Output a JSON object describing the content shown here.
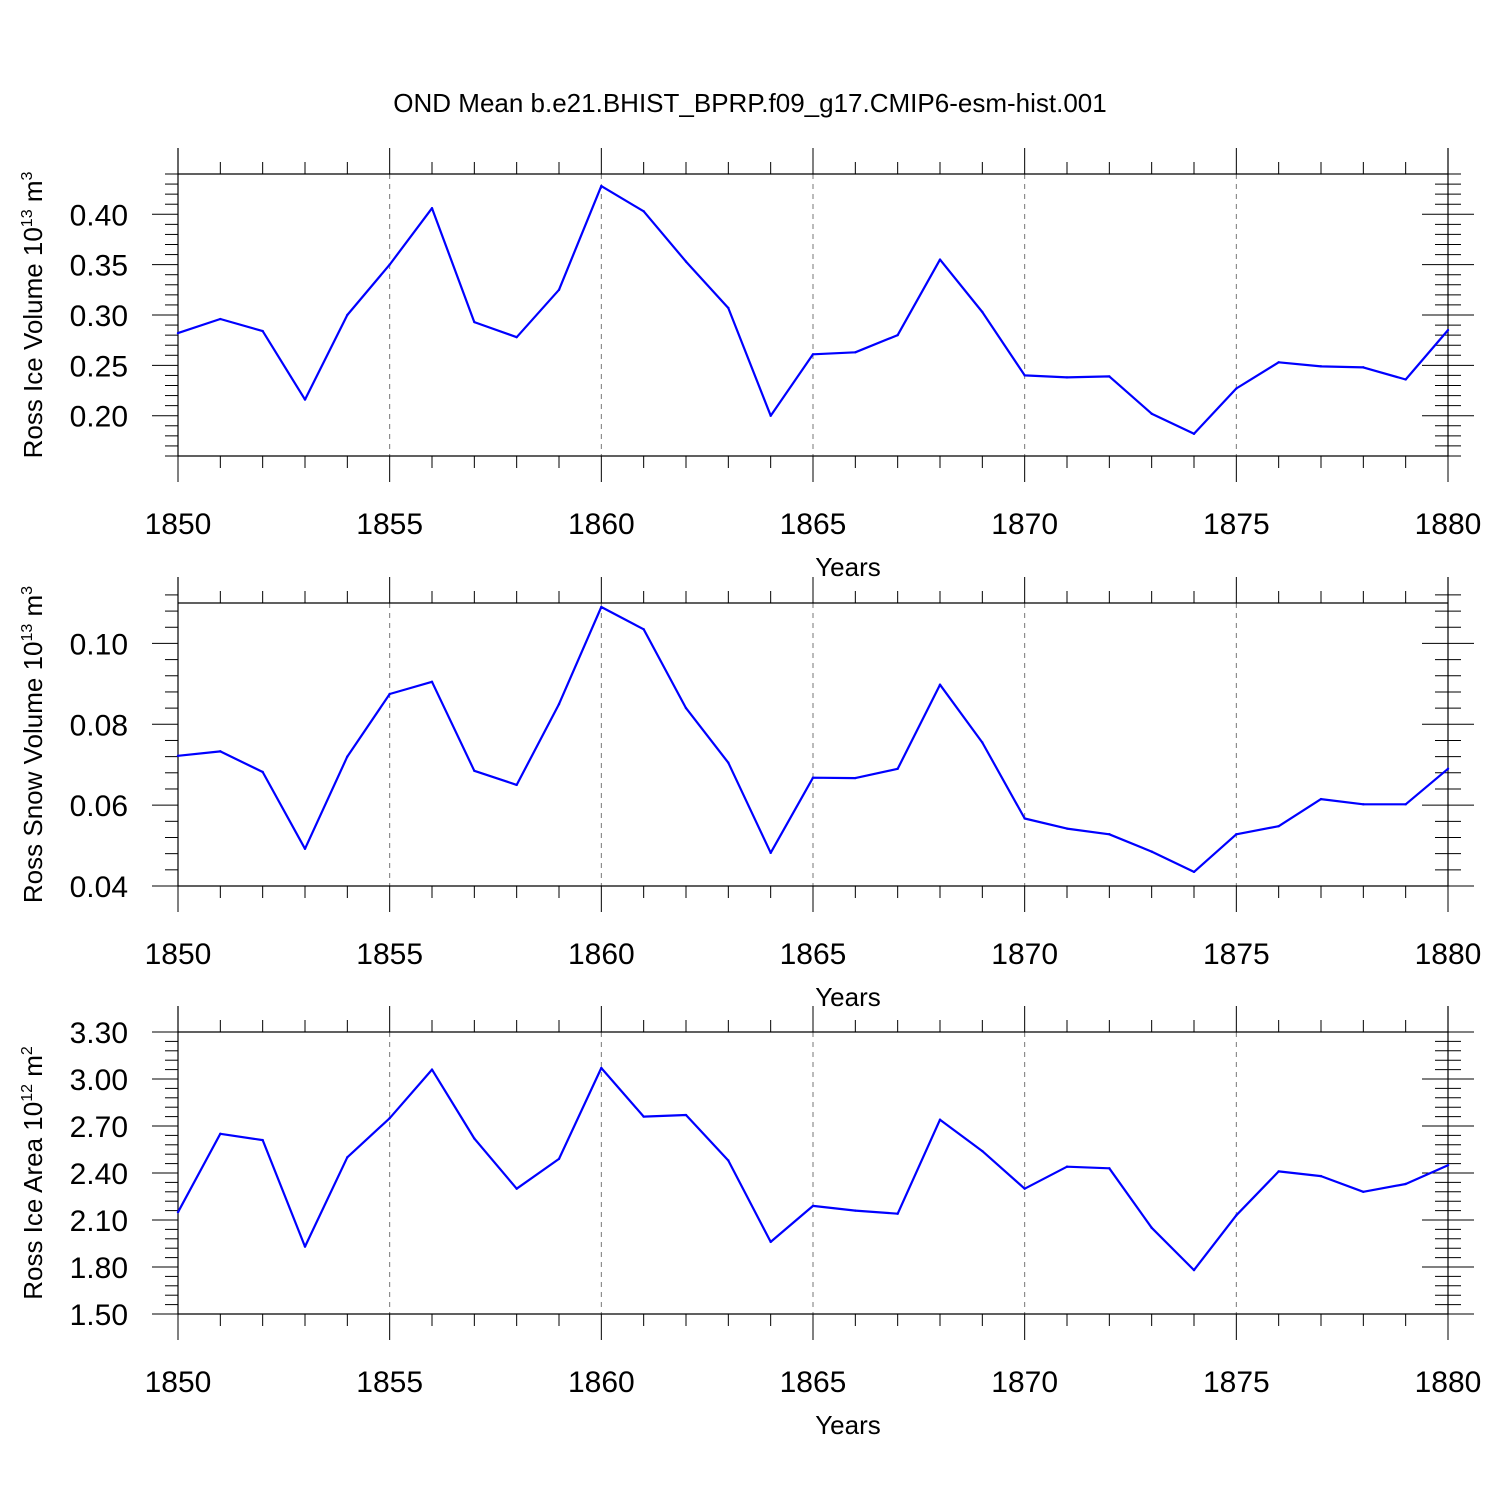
{
  "title": "OND Mean b.e21.BHIST_BPRP.f09_g17.CMIP6-esm-hist.001",
  "colors": {
    "series": "#0000ff",
    "axis": "#000000",
    "grid": "#777777"
  },
  "chart_data": [
    {
      "type": "line",
      "title": "OND Mean b.e21.BHIST_BPRP.f09_g17.CMIP6-esm-hist.001",
      "xlabel": "Years",
      "ylabel": {
        "text": "Ross Ice Volume 10",
        "sup": "13",
        "unit": "m",
        "unitSup": "3"
      },
      "x": [
        1850,
        1851,
        1852,
        1853,
        1854,
        1855,
        1856,
        1857,
        1858,
        1859,
        1860,
        1861,
        1862,
        1863,
        1864,
        1865,
        1866,
        1867,
        1868,
        1869,
        1870,
        1871,
        1872,
        1873,
        1874,
        1875,
        1876,
        1877,
        1878,
        1879,
        1880
      ],
      "values": [
        0.282,
        0.296,
        0.284,
        0.216,
        0.3,
        0.35,
        0.406,
        0.293,
        0.278,
        0.325,
        0.428,
        0.403,
        0.353,
        0.307,
        0.2,
        0.261,
        0.263,
        0.28,
        0.355,
        0.303,
        0.24,
        0.238,
        0.239,
        0.202,
        0.182,
        0.227,
        0.253,
        0.249,
        0.248,
        0.236,
        0.285
      ],
      "xlim": [
        1850,
        1880
      ],
      "ylim": [
        0.16,
        0.44
      ],
      "yticks": [
        0.2,
        0.25,
        0.3,
        0.35,
        0.4
      ],
      "ytick_labels": [
        "0.20",
        "0.25",
        "0.30",
        "0.35",
        "0.40"
      ],
      "xticks": [
        1850,
        1855,
        1860,
        1865,
        1870,
        1875,
        1880
      ],
      "xtick_labels": [
        "1850",
        "1855",
        "1860",
        "1865",
        "1870",
        "1875",
        "1880"
      ]
    },
    {
      "type": "line",
      "xlabel": "Years",
      "ylabel": {
        "text": "Ross Snow Volume 10",
        "sup": "13",
        "unit": "m",
        "unitSup": "3"
      },
      "x": [
        1850,
        1851,
        1852,
        1853,
        1854,
        1855,
        1856,
        1857,
        1858,
        1859,
        1860,
        1861,
        1862,
        1863,
        1864,
        1865,
        1866,
        1867,
        1868,
        1869,
        1870,
        1871,
        1872,
        1873,
        1874,
        1875,
        1876,
        1877,
        1878,
        1879,
        1880
      ],
      "values": [
        0.0722,
        0.0733,
        0.0682,
        0.0492,
        0.072,
        0.0875,
        0.0905,
        0.0685,
        0.065,
        0.085,
        0.109,
        0.1035,
        0.084,
        0.0705,
        0.0482,
        0.0668,
        0.0667,
        0.069,
        0.0898,
        0.0755,
        0.0567,
        0.0542,
        0.0528,
        0.0485,
        0.0435,
        0.0528,
        0.0548,
        0.0615,
        0.0602,
        0.0602,
        0.069
      ],
      "xlim": [
        1850,
        1880
      ],
      "ylim": [
        0.04,
        0.11
      ],
      "yticks": [
        0.04,
        0.06,
        0.08,
        0.1
      ],
      "ytick_labels": [
        "0.04",
        "0.06",
        "0.08",
        "0.10"
      ],
      "xticks": [
        1850,
        1855,
        1860,
        1865,
        1870,
        1875,
        1880
      ],
      "xtick_labels": [
        "1850",
        "1855",
        "1860",
        "1865",
        "1870",
        "1875",
        "1880"
      ]
    },
    {
      "type": "line",
      "xlabel": "Years",
      "ylabel": {
        "text": "Ross Ice Area 10",
        "sup": "12",
        "unit": "m",
        "unitSup": "2"
      },
      "x": [
        1850,
        1851,
        1852,
        1853,
        1854,
        1855,
        1856,
        1857,
        1858,
        1859,
        1860,
        1861,
        1862,
        1863,
        1864,
        1865,
        1866,
        1867,
        1868,
        1869,
        1870,
        1871,
        1872,
        1873,
        1874,
        1875,
        1876,
        1877,
        1878,
        1879,
        1880
      ],
      "values": [
        2.15,
        2.65,
        2.61,
        1.93,
        2.5,
        2.75,
        3.06,
        2.62,
        2.3,
        2.49,
        3.07,
        2.76,
        2.77,
        2.48,
        1.96,
        2.19,
        2.16,
        2.14,
        2.74,
        2.54,
        2.3,
        2.44,
        2.43,
        2.05,
        1.78,
        2.13,
        2.41,
        2.38,
        2.28,
        2.33,
        2.45
      ],
      "xlim": [
        1850,
        1880
      ],
      "ylim": [
        1.5,
        3.3
      ],
      "yticks": [
        1.5,
        1.8,
        2.1,
        2.4,
        2.7,
        3.0,
        3.3
      ],
      "ytick_labels": [
        "1.50",
        "1.80",
        "2.10",
        "2.40",
        "2.70",
        "3.00",
        "3.30"
      ],
      "xticks": [
        1850,
        1855,
        1860,
        1865,
        1870,
        1875,
        1880
      ],
      "xtick_labels": [
        "1850",
        "1855",
        "1860",
        "1865",
        "1870",
        "1875",
        "1880"
      ]
    }
  ]
}
